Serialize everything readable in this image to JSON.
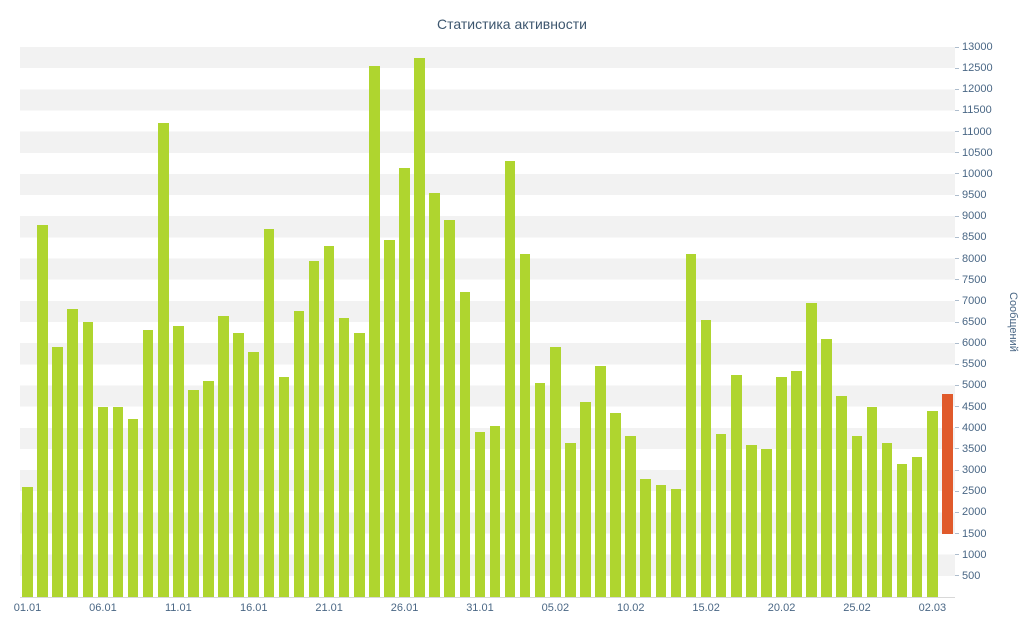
{
  "chart_data": {
    "type": "bar",
    "title": "Статистика активности",
    "xlabel": "",
    "ylabel": "Сообщений",
    "ylim": [
      0,
      13000
    ],
    "ytick_step": 500,
    "grid": "alternating-horizontal-bands",
    "legend": "none",
    "band_color": "#f2f2f2",
    "bar_color": "#afd52f",
    "label_color": "#4a6785",
    "categories": [
      "01.01",
      "02.01",
      "03.01",
      "04.01",
      "05.01",
      "06.01",
      "07.01",
      "08.01",
      "09.01",
      "10.01",
      "11.01",
      "12.01",
      "13.01",
      "14.01",
      "15.01",
      "16.01",
      "17.01",
      "18.01",
      "19.01",
      "20.01",
      "21.01",
      "22.01",
      "23.01",
      "24.01",
      "25.01",
      "26.01",
      "27.01",
      "28.01",
      "29.01",
      "30.01",
      "31.01",
      "01.02",
      "02.02",
      "03.02",
      "04.02",
      "05.02",
      "06.02",
      "07.02",
      "08.02",
      "09.02",
      "10.02",
      "11.02",
      "12.02",
      "13.02",
      "14.02",
      "15.02",
      "16.02",
      "17.02",
      "18.02",
      "19.02",
      "20.02",
      "21.02",
      "22.02",
      "23.02",
      "24.02",
      "25.02",
      "26.02",
      "27.02",
      "28.02",
      "01.03",
      "02.03",
      "03.03"
    ],
    "values": [
      2600,
      8800,
      5900,
      6800,
      6500,
      4500,
      4500,
      4200,
      6300,
      11200,
      6400,
      4900,
      5100,
      6650,
      6250,
      5800,
      8700,
      5200,
      6750,
      7950,
      8300,
      6600,
      6250,
      12550,
      8450,
      10150,
      12750,
      9550,
      8900,
      7200,
      3900,
      4050,
      10300,
      8100,
      5050,
      5900,
      3650,
      4600,
      5450,
      4350,
      3800,
      2800,
      2650,
      2550,
      8100,
      6550,
      3850,
      5250,
      3600,
      3500,
      5200,
      5350,
      6950,
      6100,
      4750,
      3800,
      4500,
      3650,
      3150,
      3300,
      4400,
      4800
    ],
    "highlight": {
      "index": 61,
      "category": "03.03",
      "from": 1500,
      "to": 4800,
      "color": "#e05a2b"
    },
    "xticks": [
      {
        "pos": 0,
        "label": "01.01"
      },
      {
        "pos": 5,
        "label": "06.01"
      },
      {
        "pos": 10,
        "label": "11.01"
      },
      {
        "pos": 15,
        "label": "16.01"
      },
      {
        "pos": 20,
        "label": "21.01"
      },
      {
        "pos": 25,
        "label": "26.01"
      },
      {
        "pos": 30,
        "label": "31.01"
      },
      {
        "pos": 35,
        "label": "05.02"
      },
      {
        "pos": 40,
        "label": "10.02"
      },
      {
        "pos": 45,
        "label": "15.02"
      },
      {
        "pos": 50,
        "label": "20.02"
      },
      {
        "pos": 55,
        "label": "25.02"
      },
      {
        "pos": 60,
        "label": "02.03"
      }
    ],
    "yticks": [
      500,
      1000,
      1500,
      2000,
      2500,
      3000,
      3500,
      4000,
      4500,
      5000,
      5500,
      6000,
      6500,
      7000,
      7500,
      8000,
      8500,
      9000,
      9500,
      10000,
      10500,
      11000,
      11500,
      12000,
      12500,
      13000
    ]
  }
}
